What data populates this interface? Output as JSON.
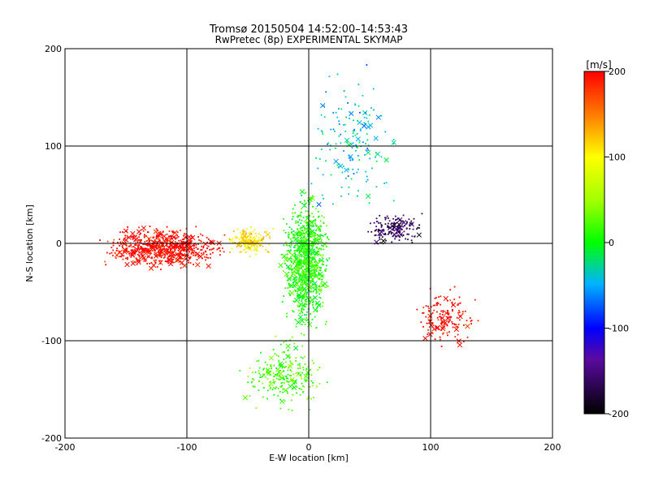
{
  "chart_data": {
    "type": "scatter",
    "title_line1": "Tromsø 20150504 14:52:00–14:53:43",
    "title_line2": "RwPretec (8p) EXPERIMENTAL SKYMAP",
    "xlabel": "E-W location [km]",
    "ylabel": "N-S location [km]",
    "xlim": [
      -200,
      200
    ],
    "ylim": [
      -200,
      200
    ],
    "x_ticks": [
      "-200",
      "-100",
      "0",
      "100",
      "200"
    ],
    "y_ticks": [
      "-200",
      "-100",
      "0",
      "100",
      "200"
    ],
    "grid": true,
    "colorbar": {
      "label": "[m/s]",
      "range": [
        -200,
        200
      ],
      "ticks": [
        "200",
        "100",
        "0",
        "-100",
        "-200"
      ]
    },
    "markers": [
      "dot",
      "x"
    ],
    "clusters": [
      {
        "region": "west band",
        "x_range": [
          -180,
          -60
        ],
        "y_range": [
          -30,
          20
        ],
        "velocity_m_s": 200,
        "count": 700
      },
      {
        "region": "west-centre transition",
        "x_range": [
          -70,
          -25
        ],
        "y_range": [
          -15,
          20
        ],
        "velocity_m_s": 110,
        "count": 150
      },
      {
        "region": "central column",
        "x_range": [
          -25,
          20
        ],
        "y_range": [
          -100,
          60
        ],
        "velocity_m_s": 10,
        "count": 1000
      },
      {
        "region": "southern tail",
        "x_range": [
          -60,
          20
        ],
        "y_range": [
          -180,
          -90
        ],
        "velocity_m_s": 20,
        "count": 260
      },
      {
        "region": "northern sparse",
        "x_range": [
          -10,
          80
        ],
        "y_range": [
          20,
          190
        ],
        "velocity_m_s": -40,
        "count": 170
      },
      {
        "region": "eastern arc",
        "x_range": [
          40,
          100
        ],
        "y_range": [
          -5,
          35
        ],
        "velocity_m_s": -170,
        "count": 160
      },
      {
        "region": "south-east patch",
        "x_range": [
          80,
          145
        ],
        "y_range": [
          -110,
          -35
        ],
        "velocity_m_s": 200,
        "count": 150
      }
    ]
  }
}
